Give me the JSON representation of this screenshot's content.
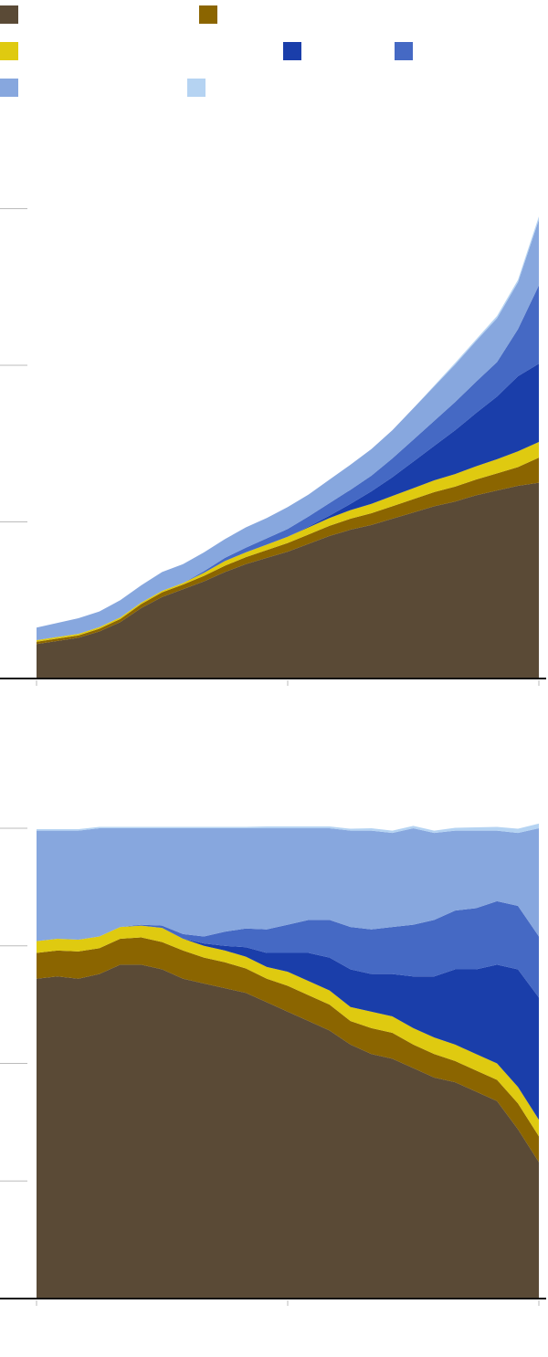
{
  "legend": [
    {
      "name": "",
      "color": "#5a4a36"
    },
    {
      "name": "",
      "color": "#8b6500"
    },
    {
      "name": "",
      "color": "#dfca10"
    },
    {
      "name": "",
      "color": "#1a3eaa"
    },
    {
      "name": "",
      "color": "#4569c4"
    },
    {
      "name": "",
      "color": "#87a7de"
    },
    {
      "name": "",
      "color": "#b5d3f2"
    }
  ],
  "chart_data": [
    {
      "type": "area",
      "stacked": true,
      "title": "",
      "xlabel": "",
      "ylabel": "",
      "x": [
        0,
        1,
        2,
        3,
        4,
        5,
        6,
        7,
        8,
        9,
        10,
        11,
        12,
        13,
        14,
        15,
        16,
        17,
        18,
        19,
        20,
        21,
        22,
        23,
        24
      ],
      "ylim": [
        0,
        3.3
      ],
      "yticks": [
        0,
        1,
        2,
        3
      ],
      "ytick_labels": [
        "",
        "",
        "",
        ""
      ],
      "xtick_labels": [
        "",
        "",
        ""
      ],
      "grid": false,
      "series": [
        {
          "name": "",
          "color": "#5a4a36",
          "values": [
            0.22,
            0.24,
            0.26,
            0.3,
            0.36,
            0.45,
            0.52,
            0.57,
            0.62,
            0.68,
            0.73,
            0.77,
            0.81,
            0.86,
            0.91,
            0.95,
            0.98,
            1.02,
            1.06,
            1.1,
            1.13,
            1.17,
            1.2,
            1.23,
            1.25
          ]
        },
        {
          "name": "",
          "color": "#8b6500",
          "values": [
            0.015,
            0.015,
            0.015,
            0.018,
            0.02,
            0.025,
            0.03,
            0.03,
            0.035,
            0.04,
            0.045,
            0.05,
            0.055,
            0.06,
            0.065,
            0.07,
            0.075,
            0.08,
            0.085,
            0.09,
            0.095,
            0.1,
            0.11,
            0.12,
            0.16
          ]
        },
        {
          "name": "",
          "color": "#dfca10",
          "values": [
            0.01,
            0.01,
            0.01,
            0.01,
            0.01,
            0.01,
            0.01,
            0.01,
            0.02,
            0.03,
            0.03,
            0.035,
            0.04,
            0.045,
            0.05,
            0.055,
            0.06,
            0.065,
            0.07,
            0.075,
            0.08,
            0.085,
            0.09,
            0.1,
            0.1
          ]
        },
        {
          "name": "",
          "color": "#1a3eaa",
          "values": [
            0,
            0,
            0,
            0,
            0,
            0,
            0,
            0,
            0,
            0,
            0,
            0,
            0,
            0.005,
            0.015,
            0.04,
            0.08,
            0.12,
            0.17,
            0.22,
            0.28,
            0.34,
            0.4,
            0.48,
            0.5
          ]
        },
        {
          "name": "",
          "color": "#4569c4",
          "values": [
            0,
            0,
            0,
            0,
            0,
            0,
            0,
            0,
            0.01,
            0.02,
            0.03,
            0.04,
            0.05,
            0.065,
            0.08,
            0.09,
            0.1,
            0.12,
            0.14,
            0.16,
            0.18,
            0.2,
            0.22,
            0.3,
            0.5
          ]
        },
        {
          "name": "",
          "color": "#87a7de",
          "values": [
            0.08,
            0.09,
            0.1,
            0.1,
            0.11,
            0.11,
            0.12,
            0.12,
            0.12,
            0.12,
            0.13,
            0.13,
            0.14,
            0.14,
            0.15,
            0.16,
            0.17,
            0.18,
            0.2,
            0.22,
            0.24,
            0.26,
            0.28,
            0.3,
            0.42
          ]
        },
        {
          "name": "",
          "color": "#b5d3f2",
          "values": [
            0,
            0,
            0,
            0,
            0,
            0,
            0,
            0,
            0,
            0,
            0,
            0,
            0,
            0,
            0,
            0,
            0,
            0,
            0,
            0.005,
            0.01,
            0.01,
            0.015,
            0.015,
            0.02
          ]
        }
      ]
    },
    {
      "type": "area",
      "stacked": true,
      "percent": true,
      "title": "",
      "xlabel": "",
      "ylabel": "",
      "x": [
        0,
        1,
        2,
        3,
        4,
        5,
        6,
        7,
        8,
        9,
        10,
        11,
        12,
        13,
        14,
        15,
        16,
        17,
        18,
        19,
        20,
        21,
        22,
        23,
        24
      ],
      "ylim": [
        0,
        100
      ],
      "yticks": [
        0,
        25,
        50,
        75,
        100
      ],
      "ytick_labels": [
        "",
        "",
        "",
        "",
        ""
      ],
      "xtick_labels": [
        "",
        "",
        ""
      ],
      "grid": false,
      "series": [
        {
          "name": "",
          "color": "#5a4a36",
          "values": [
            68,
            68.5,
            68,
            69,
            71,
            71,
            70,
            68,
            67,
            66,
            65,
            63,
            61,
            59,
            57,
            54,
            52,
            51,
            49,
            47,
            46,
            44,
            42,
            36,
            29
          ]
        },
        {
          "name": "",
          "color": "#8b6500",
          "values": [
            5.5,
            5.5,
            5.8,
            5.5,
            5.5,
            5.8,
            5.8,
            6,
            5.5,
            5.5,
            5.2,
            5,
            5.5,
            5.5,
            5.5,
            5,
            5.5,
            5.5,
            5,
            5,
            4.5,
            4.5,
            4.5,
            5.5,
            5.5
          ]
        },
        {
          "name": "",
          "color": "#dfca10",
          "values": [
            2.5,
            2.5,
            2.5,
            2.5,
            2.5,
            2.5,
            3,
            2.5,
            2.5,
            2.5,
            2.5,
            2.5,
            3,
            3,
            3,
            3,
            3.5,
            3.5,
            3.5,
            3.5,
            3.5,
            3.5,
            3.5,
            3.5,
            3.5
          ]
        },
        {
          "name": "",
          "color": "#1a3eaa",
          "values": [
            0,
            0,
            0,
            0,
            0,
            0,
            0,
            0,
            0.5,
            1,
            2,
            3,
            4,
            6,
            7,
            8,
            8,
            9,
            11,
            13,
            16,
            18,
            21,
            25,
            26
          ]
        },
        {
          "name": "",
          "color": "#4569c4",
          "values": [
            0,
            0,
            0,
            0,
            0,
            0.2,
            0.5,
            1,
            1.5,
            3,
            4,
            5,
            6,
            7,
            8,
            9,
            9.5,
            10,
            11,
            12,
            12.5,
            13,
            13.5,
            13.5,
            13
          ]
        },
        {
          "name": "",
          "color": "#87a7de",
          "values": [
            23.5,
            23,
            23.2,
            23,
            21,
            20.5,
            20.7,
            22.5,
            23,
            22,
            21.3,
            21.5,
            20.5,
            19.5,
            19.5,
            20.5,
            21,
            20,
            20.5,
            18.5,
            17,
            16.5,
            15,
            15.5,
            23
          ]
        },
        {
          "name": "",
          "color": "#b5d3f2",
          "values": [
            0.3,
            0.3,
            0.3,
            0.3,
            0.3,
            0.3,
            0.3,
            0.3,
            0.3,
            0.3,
            0.3,
            0.4,
            0.4,
            0.4,
            0.4,
            0.4,
            0.5,
            0.5,
            0.5,
            0.5,
            0.6,
            0.7,
            0.8,
            0.9,
            1
          ]
        }
      ]
    }
  ]
}
